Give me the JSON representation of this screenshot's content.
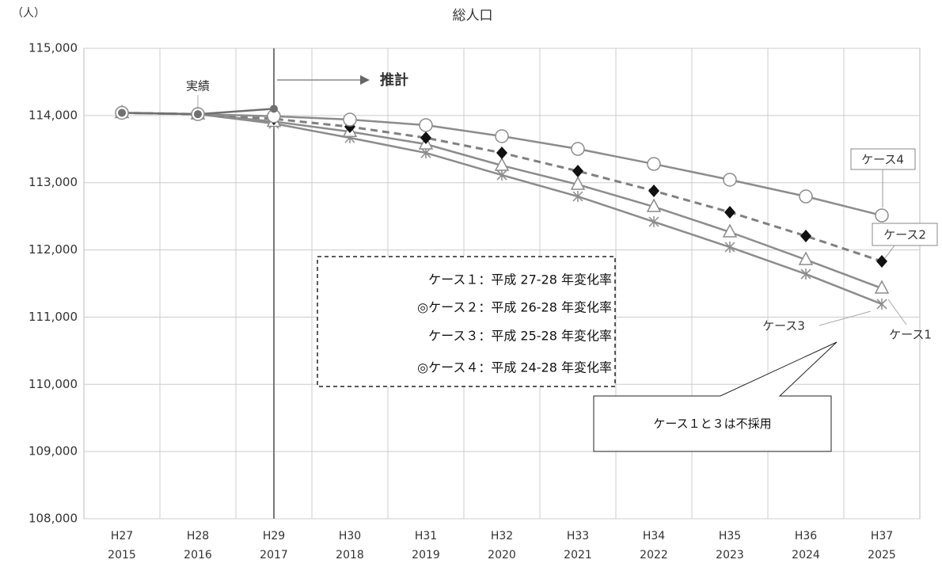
{
  "chart_data": {
    "type": "line",
    "title": "総人口",
    "y_unit": "（人）",
    "categories": [
      [
        "H27",
        "2015"
      ],
      [
        "H28",
        "2016"
      ],
      [
        "H29",
        "2017"
      ],
      [
        "H30",
        "2018"
      ],
      [
        "H31",
        "2019"
      ],
      [
        "H32",
        "2020"
      ],
      [
        "H33",
        "2021"
      ],
      [
        "H34",
        "2022"
      ],
      [
        "H35",
        "2023"
      ],
      [
        "H36",
        "2024"
      ],
      [
        "H37",
        "2025"
      ]
    ],
    "ylim": [
      108000,
      115000
    ],
    "yticks": [
      {
        "value": 108000,
        "label": "108,000"
      },
      {
        "value": 109000,
        "label": "109,000"
      },
      {
        "value": 110000,
        "label": "110,000"
      },
      {
        "value": 111000,
        "label": "111,000"
      },
      {
        "value": 112000,
        "label": "112,000"
      },
      {
        "value": 113000,
        "label": "113,000"
      },
      {
        "value": 114000,
        "label": "114,000"
      },
      {
        "value": 115000,
        "label": "115,000"
      }
    ],
    "grid": true,
    "series": [
      {
        "name": "ケース3",
        "color": "#8c8c8c",
        "marker": "asterisk",
        "dashed": false,
        "values": [
          114040,
          114020,
          113880,
          113668,
          113444,
          113114,
          112796,
          112419,
          112042,
          111641,
          111194
        ]
      },
      {
        "name": "ケース1",
        "color": "#8c8c8c",
        "marker": "triangle",
        "dashed": false,
        "values": [
          114040,
          114020,
          113910,
          113760,
          113574,
          113256,
          112973,
          112643,
          112266,
          111854,
          111429
        ]
      },
      {
        "name": "ケース2",
        "color": "#808080",
        "marker": "diamond",
        "dashed": true,
        "values": [
          114040,
          114020,
          113950,
          113833,
          113668,
          113444,
          113173,
          112879,
          112561,
          112207,
          111830
        ]
      },
      {
        "name": "ケース4",
        "color": "#8c8c8c",
        "marker": "circle",
        "dashed": false,
        "values": [
          114040,
          114020,
          113990,
          113939,
          113857,
          113692,
          113503,
          113279,
          113044,
          112796,
          112513
        ]
      },
      {
        "name": "実績",
        "color": "#707070",
        "marker": "dot",
        "dashed": false,
        "values": [
          114040,
          114020,
          114100,
          null,
          null,
          null,
          null,
          null,
          null,
          null,
          null
        ]
      }
    ],
    "projection_label": "推計",
    "legend_box": [
      "ケース１：平成 27-28 年変化率",
      "◎ケース２：平成 26-28 年変化率",
      "ケース３：平成 25-28 年変化率",
      "◎ケース４：平成 24-28 年変化率"
    ],
    "callout": "ケース１と３は不採用"
  }
}
